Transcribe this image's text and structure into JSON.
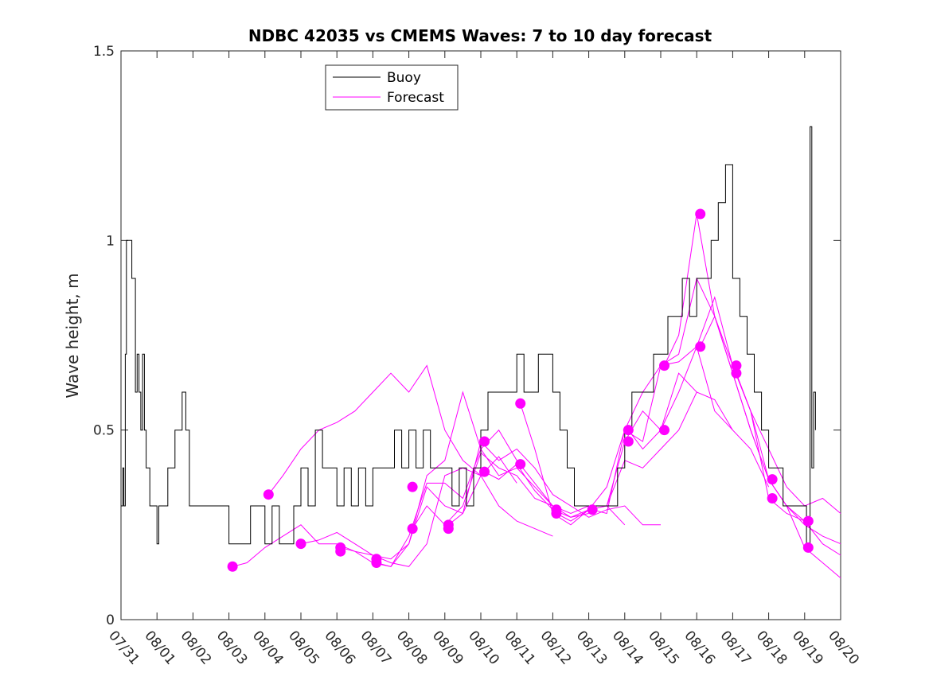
{
  "chart_data": {
    "type": "line",
    "title": "NDBC 42035 vs CMEMS Waves: 7 to 10 day forecast",
    "xlabel": "",
    "ylabel": "Wave height, m",
    "xlim": [
      0,
      20
    ],
    "ylim": [
      0,
      1.5
    ],
    "yticks": [
      0,
      0.5,
      1,
      1.5
    ],
    "ytick_labels": [
      "0",
      "0.5",
      "1",
      "1.5"
    ],
    "xtick_labels": [
      "07/31",
      "08/01",
      "08/02",
      "08/03",
      "08/04",
      "08/05",
      "08/06",
      "08/07",
      "08/08",
      "08/09",
      "08/10",
      "08/11",
      "08/12",
      "08/13",
      "08/14",
      "08/15",
      "08/16",
      "08/17",
      "08/18",
      "08/19",
      "08/20"
    ],
    "legend": {
      "position": "top-left-center",
      "entries": [
        "Buoy",
        "Forecast"
      ]
    },
    "colors": {
      "buoy": "#000000",
      "forecast": "#ff00ff"
    },
    "buoy": {
      "name": "Buoy",
      "x": [
        0,
        0.05,
        0.08,
        0.12,
        0.15,
        0.2,
        0.3,
        0.4,
        0.45,
        0.5,
        0.55,
        0.6,
        0.65,
        0.7,
        0.75,
        0.8,
        0.85,
        0.9,
        1.0,
        1.05,
        1.1,
        1.2,
        1.3,
        1.5,
        1.6,
        1.7,
        1.8,
        1.9,
        2.0,
        2.2,
        2.6,
        2.9,
        3.0,
        3.1,
        3.3,
        3.5,
        3.6,
        3.8,
        4.0,
        4.2,
        4.4,
        4.6,
        4.8,
        5.0,
        5.2,
        5.4,
        5.6,
        5.8,
        6.0,
        6.2,
        6.4,
        6.6,
        6.8,
        7.0,
        7.2,
        7.4,
        7.6,
        7.8,
        8.0,
        8.2,
        8.4,
        8.6,
        8.8,
        9.0,
        9.2,
        9.4,
        9.6,
        9.8,
        10.0,
        10.2,
        10.5,
        10.8,
        11.0,
        11.2,
        11.4,
        11.6,
        11.8,
        12.0,
        12.2,
        12.4,
        12.6,
        12.8,
        13.0,
        13.2,
        13.4,
        13.6,
        13.8,
        14.0,
        14.2,
        14.4,
        14.6,
        14.8,
        15.0,
        15.2,
        15.4,
        15.6,
        15.8,
        16.0,
        16.2,
        16.4,
        16.6,
        16.8,
        17.0,
        17.2,
        17.4,
        17.6,
        17.8,
        18.0,
        18.2,
        18.4,
        18.6,
        18.8,
        19.0,
        19.05,
        19.1,
        19.15,
        19.2,
        19.25,
        19.3
      ],
      "values": [
        0.3,
        0.4,
        0.3,
        0.7,
        1.0,
        1.0,
        0.9,
        0.6,
        0.7,
        0.6,
        0.5,
        0.7,
        0.5,
        0.4,
        0.4,
        0.3,
        0.3,
        0.3,
        0.2,
        0.3,
        0.3,
        0.3,
        0.4,
        0.5,
        0.5,
        0.6,
        0.5,
        0.3,
        0.3,
        0.3,
        0.3,
        0.3,
        0.2,
        0.2,
        0.2,
        0.2,
        0.3,
        0.3,
        0.2,
        0.3,
        0.2,
        0.2,
        0.3,
        0.4,
        0.3,
        0.5,
        0.4,
        0.4,
        0.3,
        0.4,
        0.3,
        0.4,
        0.3,
        0.4,
        0.4,
        0.4,
        0.5,
        0.4,
        0.5,
        0.4,
        0.5,
        0.4,
        0.4,
        0.4,
        0.3,
        0.4,
        0.3,
        0.4,
        0.5,
        0.6,
        0.6,
        0.6,
        0.7,
        0.6,
        0.6,
        0.7,
        0.7,
        0.6,
        0.5,
        0.4,
        0.3,
        0.3,
        0.3,
        0.3,
        0.3,
        0.3,
        0.4,
        0.5,
        0.6,
        0.6,
        0.6,
        0.7,
        0.7,
        0.8,
        0.8,
        0.9,
        0.8,
        0.9,
        0.9,
        1.0,
        1.1,
        1.2,
        0.9,
        0.8,
        0.7,
        0.6,
        0.5,
        0.4,
        0.4,
        0.3,
        0.3,
        0.3,
        0.3,
        0.2,
        0.2,
        1.3,
        0.4,
        0.6,
        0.5
      ]
    },
    "forecast": {
      "name": "Forecast",
      "series": [
        {
          "x": [
            3.1,
            3.5,
            4.0,
            4.5,
            5.0,
            5.5,
            6.0,
            6.5,
            7.0,
            7.5,
            8.0,
            8.5,
            9.0,
            9.5,
            10.0
          ],
          "values": [
            0.14,
            0.15,
            0.19,
            0.22,
            0.25,
            0.2,
            0.2,
            0.18,
            0.17,
            0.16,
            0.2,
            0.35,
            0.3,
            0.28,
            0.38
          ]
        },
        {
          "x": [
            4.1,
            4.5,
            5.0,
            5.5,
            6.0,
            6.5,
            7.0,
            7.5,
            8.0,
            8.5,
            9.0,
            9.5,
            10.0,
            10.5,
            11.0,
            11.5,
            12.0
          ],
          "values": [
            0.33,
            0.38,
            0.45,
            0.5,
            0.52,
            0.55,
            0.6,
            0.65,
            0.6,
            0.67,
            0.5,
            0.42,
            0.38,
            0.3,
            0.26,
            0.24,
            0.22
          ]
        },
        {
          "x": [
            5.0,
            5.5,
            6.0,
            6.5,
            7.0,
            7.5,
            8.0,
            8.5,
            9.0,
            9.5,
            10.0,
            10.5,
            11.0
          ],
          "values": [
            0.2,
            0.21,
            0.23,
            0.2,
            0.17,
            0.15,
            0.14,
            0.2,
            0.38,
            0.4,
            0.38,
            0.43,
            0.36
          ]
        },
        {
          "x": [
            6.1,
            6.5,
            7.0,
            7.5,
            8.0,
            8.5,
            9.0,
            9.5,
            10.0,
            10.5,
            11.0,
            11.5,
            12.0
          ],
          "values": [
            0.19,
            0.18,
            0.15,
            0.14,
            0.2,
            0.38,
            0.42,
            0.6,
            0.45,
            0.38,
            0.4,
            0.35,
            0.3
          ]
        },
        {
          "x": [
            7.1,
            7.5,
            8.0,
            8.5,
            9.0,
            9.5,
            10.0,
            10.5,
            11.0,
            11.5,
            12.0,
            12.5,
            13.0
          ],
          "values": [
            0.15,
            0.14,
            0.22,
            0.36,
            0.36,
            0.32,
            0.45,
            0.5,
            0.42,
            0.36,
            0.3,
            0.27,
            0.28
          ]
        },
        {
          "x": [
            8.1,
            8.5,
            9.0,
            9.5,
            10.0,
            10.5,
            11.0,
            11.5,
            12.0,
            12.5,
            13.0,
            13.5,
            14.0
          ],
          "values": [
            0.24,
            0.3,
            0.25,
            0.3,
            0.44,
            0.4,
            0.38,
            0.32,
            0.3,
            0.28,
            0.3,
            0.3,
            0.25
          ]
        },
        {
          "x": [
            9.1,
            9.5,
            10.0,
            10.5,
            11.0,
            11.5,
            12.0,
            12.5,
            13.0,
            13.5,
            14.0,
            14.5,
            15.0
          ],
          "values": [
            0.25,
            0.28,
            0.47,
            0.42,
            0.45,
            0.4,
            0.33,
            0.3,
            0.27,
            0.29,
            0.3,
            0.25,
            0.25
          ]
        },
        {
          "x": [
            10.1,
            10.5,
            11.0,
            11.5,
            12.0,
            12.5,
            13.0,
            13.5,
            14.0,
            14.5,
            15.0,
            15.5,
            16.0
          ],
          "values": [
            0.39,
            0.37,
            0.41,
            0.34,
            0.29,
            0.27,
            0.29,
            0.3,
            0.42,
            0.4,
            0.45,
            0.5,
            0.6
          ]
        },
        {
          "x": [
            11.1,
            11.5,
            12.0,
            12.5,
            13.0,
            13.5,
            14.0,
            14.5,
            15.0,
            15.5,
            16.0,
            16.5,
            17.0
          ],
          "values": [
            0.57,
            0.45,
            0.28,
            0.25,
            0.29,
            0.35,
            0.5,
            0.47,
            0.67,
            0.68,
            0.72,
            0.55,
            0.5
          ]
        },
        {
          "x": [
            12.1,
            12.5,
            13.0,
            13.5,
            14.0,
            14.5,
            15.0,
            15.5,
            16.0,
            16.5,
            17.0,
            17.5,
            18.0
          ],
          "values": [
            0.28,
            0.26,
            0.29,
            0.3,
            0.47,
            0.55,
            0.5,
            0.65,
            0.6,
            0.58,
            0.5,
            0.45,
            0.35
          ]
        },
        {
          "x": [
            13.1,
            13.5,
            14.0,
            14.5,
            15.0,
            15.5,
            16.0,
            16.5,
            17.0,
            17.5,
            18.0,
            18.5,
            19.0
          ],
          "values": [
            0.29,
            0.28,
            0.5,
            0.6,
            0.67,
            0.7,
            0.9,
            0.8,
            0.65,
            0.5,
            0.37,
            0.3,
            0.26
          ]
        },
        {
          "x": [
            14.1,
            14.5,
            15.0,
            15.5,
            16.0,
            16.5,
            17.0,
            17.5,
            18.0,
            18.5,
            19.0,
            19.5,
            20.0
          ],
          "values": [
            0.5,
            0.45,
            0.5,
            0.6,
            0.72,
            0.85,
            0.67,
            0.55,
            0.45,
            0.35,
            0.3,
            0.32,
            0.28
          ]
        },
        {
          "x": [
            15.1,
            15.5,
            16.0,
            16.5,
            17.0,
            17.5,
            18.0,
            18.5,
            19.0,
            19.5,
            20.0
          ],
          "values": [
            0.67,
            0.75,
            1.07,
            0.8,
            0.65,
            0.5,
            0.37,
            0.3,
            0.25,
            0.22,
            0.2
          ]
        },
        {
          "x": [
            16.1,
            16.5,
            17.0,
            17.5,
            18.0,
            18.5,
            19.0,
            19.5,
            20.0
          ],
          "values": [
            0.72,
            0.8,
            0.67,
            0.55,
            0.32,
            0.28,
            0.26,
            0.2,
            0.17
          ]
        },
        {
          "x": [
            17.1,
            17.5,
            18.0,
            18.5,
            19.0,
            19.5,
            20.0
          ],
          "values": [
            0.65,
            0.55,
            0.37,
            0.3,
            0.19,
            0.15,
            0.11
          ]
        }
      ],
      "markers": {
        "x": [
          3.1,
          4.1,
          5.0,
          6.1,
          6.1,
          7.1,
          7.1,
          8.1,
          8.1,
          9.1,
          9.1,
          10.1,
          10.1,
          11.1,
          11.1,
          12.1,
          12.1,
          13.1,
          14.1,
          14.1,
          15.1,
          15.1,
          16.1,
          16.1,
          17.1,
          17.1,
          18.1,
          18.1,
          19.1,
          19.1
        ],
        "values": [
          0.14,
          0.33,
          0.2,
          0.19,
          0.18,
          0.16,
          0.15,
          0.35,
          0.24,
          0.25,
          0.24,
          0.47,
          0.39,
          0.57,
          0.41,
          0.29,
          0.28,
          0.29,
          0.5,
          0.47,
          0.67,
          0.5,
          1.07,
          0.72,
          0.67,
          0.65,
          0.37,
          0.32,
          0.26,
          0.19
        ]
      }
    }
  }
}
